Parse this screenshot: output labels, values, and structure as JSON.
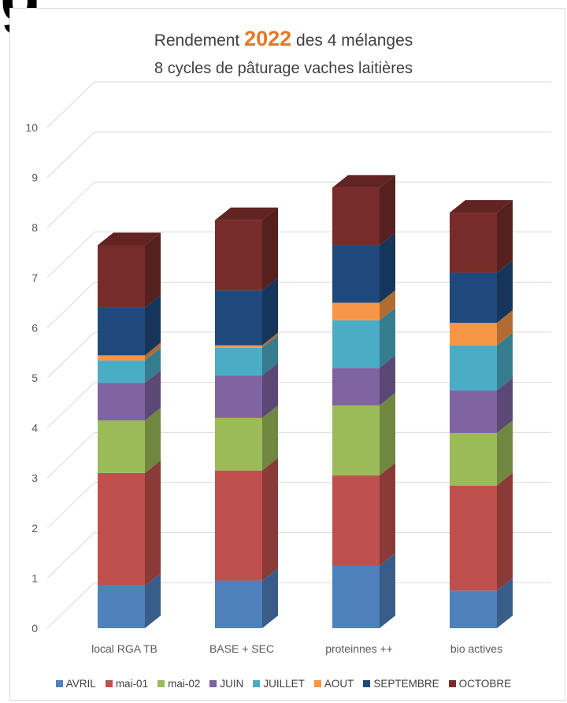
{
  "crop_heading": "g",
  "chart_data": {
    "type": "bar",
    "stacked": true,
    "title_prefix": "Rendement ",
    "title_year": "2022",
    "title_suffix": " des 4 mélanges",
    "subtitle": "8 cycles de pâturage vaches laitières",
    "categories": [
      "local RGA TB",
      "BASE + SEC",
      "proteinnes ++",
      "bio actives"
    ],
    "ylim": [
      0,
      10
    ],
    "yticks": [
      "0",
      "1",
      "2",
      "3",
      "4",
      "5",
      "6",
      "7",
      "8",
      "9",
      "10"
    ],
    "legend_position": "bottom",
    "grid": true,
    "series": [
      {
        "name": "AVRIL",
        "color": "#4f81bd",
        "values": [
          0.85,
          0.95,
          1.25,
          0.75
        ]
      },
      {
        "name": "mai-01",
        "color": "#c0504d",
        "values": [
          2.25,
          2.2,
          1.8,
          2.1
        ]
      },
      {
        "name": "mai-02",
        "color": "#9bbb59",
        "values": [
          1.05,
          1.05,
          1.4,
          1.05
        ]
      },
      {
        "name": "JUIN",
        "color": "#8064a2",
        "values": [
          0.75,
          0.85,
          0.75,
          0.85
        ]
      },
      {
        "name": "JUILLET",
        "color": "#4bacc6",
        "values": [
          0.45,
          0.55,
          0.95,
          0.9
        ]
      },
      {
        "name": "AOUT",
        "color": "#f79646",
        "values": [
          0.1,
          0.05,
          0.35,
          0.45
        ]
      },
      {
        "name": "SEPTEMBRE",
        "color": "#1f497d",
        "values": [
          0.95,
          1.1,
          1.15,
          1.0
        ]
      },
      {
        "name": "OCTOBRE",
        "color": "#772c2a",
        "values": [
          1.25,
          1.4,
          1.15,
          1.2
        ]
      }
    ]
  }
}
